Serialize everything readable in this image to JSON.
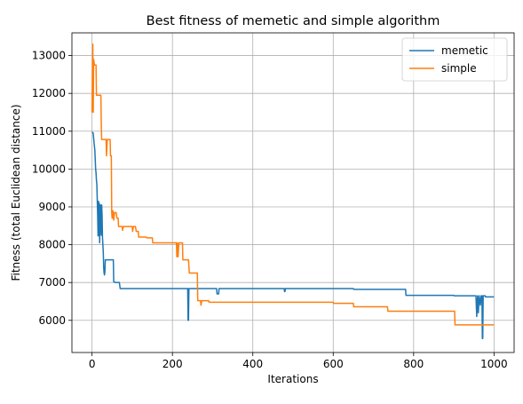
{
  "chart_data": {
    "type": "line",
    "title": "Best fitness of memetic and simple algorithm",
    "xlabel": "Iterations",
    "ylabel": "Fitness (total Euclidean distance)",
    "xlim": [
      -50,
      1050
    ],
    "ylim": [
      5150,
      13600
    ],
    "xticks": [
      0,
      200,
      400,
      600,
      800,
      1000
    ],
    "yticks": [
      6000,
      7000,
      8000,
      9000,
      10000,
      11000,
      12000,
      13000
    ],
    "xtick_labels": [
      "0",
      "200",
      "400",
      "600",
      "800",
      "1000"
    ],
    "ytick_labels": [
      "6000",
      "7000",
      "8000",
      "9000",
      "10000",
      "11000",
      "12000",
      "13000"
    ],
    "grid": true,
    "legend_position": "top-right",
    "series": [
      {
        "name": "memetic",
        "color": "#1f77b4",
        "points": [
          [
            0,
            10980
          ],
          [
            3,
            10950
          ],
          [
            5,
            10700
          ],
          [
            7,
            10500
          ],
          [
            8,
            10250
          ],
          [
            9,
            10000
          ],
          [
            10,
            9900
          ],
          [
            11,
            9700
          ],
          [
            12,
            9600
          ],
          [
            13,
            9200
          ],
          [
            14,
            8800
          ],
          [
            15,
            8230
          ],
          [
            16,
            9150
          ],
          [
            17,
            8250
          ],
          [
            18,
            9100
          ],
          [
            19,
            8050
          ],
          [
            20,
            8900
          ],
          [
            21,
            9050
          ],
          [
            22,
            8500
          ],
          [
            23,
            8250
          ],
          [
            24,
            9050
          ],
          [
            25,
            8800
          ],
          [
            26,
            8200
          ],
          [
            27,
            8000
          ],
          [
            28,
            7800
          ],
          [
            29,
            7400
          ],
          [
            30,
            7250
          ],
          [
            31,
            7200
          ],
          [
            32,
            7280
          ],
          [
            33,
            7600
          ],
          [
            40,
            7600
          ],
          [
            50,
            7600
          ],
          [
            53,
            7600
          ],
          [
            54,
            7020
          ],
          [
            58,
            7000
          ],
          [
            68,
            7000
          ],
          [
            70,
            6840
          ],
          [
            100,
            6840
          ],
          [
            238,
            6840
          ],
          [
            239,
            6000
          ],
          [
            240,
            6000
          ],
          [
            241,
            6840
          ],
          [
            310,
            6840
          ],
          [
            311,
            6700
          ],
          [
            315,
            6700
          ],
          [
            316,
            6840
          ],
          [
            478,
            6840
          ],
          [
            479,
            6760
          ],
          [
            480,
            6760
          ],
          [
            481,
            6840
          ],
          [
            650,
            6840
          ],
          [
            651,
            6820
          ],
          [
            780,
            6820
          ],
          [
            781,
            6660
          ],
          [
            900,
            6660
          ],
          [
            901,
            6650
          ],
          [
            950,
            6650
          ],
          [
            955,
            6650
          ],
          [
            957,
            6100
          ],
          [
            959,
            6650
          ],
          [
            961,
            6200
          ],
          [
            963,
            6650
          ],
          [
            966,
            6400
          ],
          [
            968,
            6650
          ],
          [
            970,
            6650
          ],
          [
            971,
            5520
          ],
          [
            972,
            5520
          ],
          [
            973,
            6650
          ],
          [
            978,
            6650
          ],
          [
            979,
            6620
          ],
          [
            1000,
            6620
          ]
        ]
      },
      {
        "name": "simple",
        "color": "#ff7f0e",
        "points": [
          [
            0,
            11500
          ],
          [
            1,
            12600
          ],
          [
            2,
            13300
          ],
          [
            3,
            11500
          ],
          [
            4,
            12900
          ],
          [
            6,
            12750
          ],
          [
            10,
            12750
          ],
          [
            11,
            11950
          ],
          [
            22,
            11950
          ],
          [
            23,
            11200
          ],
          [
            24,
            10780
          ],
          [
            35,
            10780
          ],
          [
            36,
            10350
          ],
          [
            38,
            10780
          ],
          [
            45,
            10780
          ],
          [
            46,
            10350
          ],
          [
            48,
            10350
          ],
          [
            49,
            8850
          ],
          [
            50,
            8700
          ],
          [
            52,
            8900
          ],
          [
            54,
            8650
          ],
          [
            56,
            8850
          ],
          [
            60,
            8850
          ],
          [
            62,
            8700
          ],
          [
            65,
            8700
          ],
          [
            66,
            8480
          ],
          [
            75,
            8480
          ],
          [
            76,
            8380
          ],
          [
            78,
            8480
          ],
          [
            100,
            8480
          ],
          [
            101,
            8350
          ],
          [
            103,
            8480
          ],
          [
            108,
            8480
          ],
          [
            110,
            8350
          ],
          [
            115,
            8350
          ],
          [
            116,
            8200
          ],
          [
            130,
            8200
          ],
          [
            132,
            8200
          ],
          [
            135,
            8200
          ],
          [
            136,
            8180
          ],
          [
            150,
            8180
          ],
          [
            151,
            8050
          ],
          [
            200,
            8050
          ],
          [
            210,
            8050
          ],
          [
            211,
            7680
          ],
          [
            212,
            8050
          ],
          [
            214,
            7680
          ],
          [
            216,
            8050
          ],
          [
            225,
            8050
          ],
          [
            226,
            7600
          ],
          [
            240,
            7600
          ],
          [
            242,
            7250
          ],
          [
            250,
            7250
          ],
          [
            262,
            7250
          ],
          [
            263,
            6520
          ],
          [
            270,
            6520
          ],
          [
            271,
            6400
          ],
          [
            273,
            6520
          ],
          [
            280,
            6520
          ],
          [
            290,
            6520
          ],
          [
            291,
            6480
          ],
          [
            400,
            6480
          ],
          [
            450,
            6480
          ],
          [
            500,
            6480
          ],
          [
            600,
            6480
          ],
          [
            601,
            6450
          ],
          [
            650,
            6450
          ],
          [
            651,
            6360
          ],
          [
            735,
            6360
          ],
          [
            736,
            6240
          ],
          [
            800,
            6240
          ],
          [
            902,
            6240
          ],
          [
            903,
            5880
          ],
          [
            960,
            5880
          ],
          [
            1000,
            5880
          ]
        ]
      }
    ]
  }
}
